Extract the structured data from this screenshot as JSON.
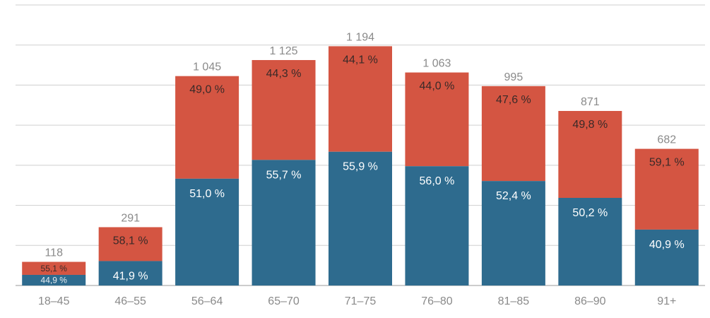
{
  "chart_data": {
    "type": "bar",
    "stacked": true,
    "categories": [
      "18–45",
      "46–55",
      "56–64",
      "65–70",
      "71–75",
      "76–80",
      "81–85",
      "86–90",
      "91+"
    ],
    "totals": [
      118,
      291,
      1045,
      1125,
      1194,
      1063,
      995,
      871,
      682
    ],
    "total_labels": [
      "118",
      "291",
      "1 045",
      "1 125",
      "1 194",
      "1 063",
      "995",
      "871",
      "682"
    ],
    "series": [
      {
        "color": "#2e6b8e",
        "percent": [
          44.9,
          41.9,
          51.0,
          55.7,
          55.9,
          56.0,
          52.4,
          50.2,
          40.9
        ],
        "labels": [
          "44,9 %",
          "41,9 %",
          "51,0 %",
          "55,7 %",
          "55,9 %",
          "56,0 %",
          "52,4 %",
          "50,2 %",
          "40,9 %"
        ]
      },
      {
        "color": "#d45542",
        "percent": [
          55.1,
          58.1,
          49.0,
          44.3,
          44.1,
          44.0,
          47.6,
          49.8,
          59.1
        ],
        "labels": [
          "55,1 %",
          "58,1 %",
          "49,0 %",
          "44,3 %",
          "44,1 %",
          "44,0 %",
          "47,6 %",
          "49,8 %",
          "59,1 %"
        ]
      }
    ],
    "ylim": [
      0,
      1400
    ],
    "grid": true,
    "legend": "none",
    "title": "",
    "xlabel": "",
    "ylabel": ""
  }
}
